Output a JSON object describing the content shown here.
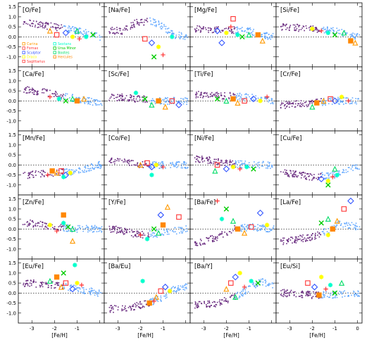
{
  "chart_data": {
    "type": "scatter",
    "layout": "5x4 panel grid",
    "xlabel": "[Fe/H]",
    "x_ticks": [
      "-3",
      "-2",
      "-1",
      "0"
    ],
    "x_ticks_shared": [
      "-3",
      "-2",
      "-1"
    ],
    "xlim": [
      -3.6,
      0.2
    ],
    "y_ticks": [
      "1.5",
      "1.0",
      "0.5",
      "0.0",
      "-0.5",
      "-1.0"
    ],
    "ylim": [
      -1.5,
      1.7
    ],
    "reference_line": "y = 0 (dotted)",
    "legend_panel": 0,
    "legend": [
      {
        "label": "Carina",
        "color": "#ff9900",
        "marker": "triangle"
      },
      {
        "label": "Fornax",
        "color": "#ff3333",
        "marker": "square"
      },
      {
        "label": "Sculptor",
        "color": "#3355ff",
        "marker": "diamond"
      },
      {
        "label": "Draco",
        "color": "#ffff00",
        "marker": "star"
      },
      {
        "label": "Sagittarius",
        "color": "#ff3333",
        "marker": "plus"
      },
      {
        "label": "Sextans",
        "color": "#00ffcc",
        "marker": "star"
      },
      {
        "label": "Ursa Minor",
        "color": "#00cc00",
        "marker": "cross"
      },
      {
        "label": "Bootes",
        "color": "#00dd66",
        "marker": "triangle"
      },
      {
        "label": "Hercules",
        "color": "#ff8800",
        "marker": "filled-square"
      }
    ],
    "panels": [
      {
        "label": "[O/Fe]",
        "mw": [
          [
            -3.2,
            0.7
          ],
          [
            -2.0,
            0.5
          ],
          [
            -1.0,
            0.3
          ],
          [
            0.0,
            0.0
          ]
        ],
        "dsph": [
          [
            -2.2,
            0.3
          ],
          [
            -1.9,
            0.1
          ],
          [
            -1.5,
            0.2
          ],
          [
            -1.2,
            0.0
          ],
          [
            -0.9,
            -0.1
          ],
          [
            -0.6,
            0.0
          ],
          [
            -0.3,
            0.1
          ],
          [
            -1.0,
            0.3
          ]
        ]
      },
      {
        "label": "[Na/Fe]",
        "mw": [
          [
            -2.8,
            0.3
          ],
          [
            -2.2,
            0.7
          ],
          [
            -1.5,
            0.8
          ],
          [
            -1.0,
            0.5
          ],
          [
            -0.5,
            0.1
          ],
          [
            0.0,
            0.0
          ]
        ],
        "dsph": [
          [
            -1.8,
            -0.1
          ],
          [
            -1.5,
            -0.3
          ],
          [
            -1.2,
            -0.5
          ],
          [
            -1.0,
            -0.9
          ],
          [
            -0.6,
            0.0
          ],
          [
            -1.4,
            -1.0
          ]
        ]
      },
      {
        "label": "[Mg/Fe]",
        "mw": [
          [
            -3.2,
            0.4
          ],
          [
            -2.0,
            0.35
          ],
          [
            -1.0,
            0.3
          ],
          [
            0.0,
            0.0
          ]
        ],
        "dsph": [
          [
            -2.4,
            0.3
          ],
          [
            -2.0,
            0.2
          ],
          [
            -1.8,
            0.5
          ],
          [
            -1.5,
            0.1
          ],
          [
            -1.3,
            0.0
          ],
          [
            -1.0,
            0.1
          ],
          [
            -0.6,
            0.1
          ],
          [
            -0.4,
            -0.2
          ],
          [
            -1.7,
            0.9
          ],
          [
            -2.2,
            -0.3
          ]
        ]
      },
      {
        "label": "[Si/Fe]",
        "mw": [
          [
            -3.2,
            0.5
          ],
          [
            -2.0,
            0.4
          ],
          [
            -1.0,
            0.3
          ],
          [
            0.0,
            0.0
          ]
        ],
        "dsph": [
          [
            -2.0,
            0.4
          ],
          [
            -1.6,
            0.3
          ],
          [
            -1.3,
            0.2
          ],
          [
            -1.0,
            0.1
          ],
          [
            -0.6,
            0.2
          ],
          [
            -0.3,
            -0.2
          ],
          [
            -0.1,
            -0.3
          ]
        ]
      },
      {
        "label": "[Ca/Fe]",
        "mw": [
          [
            -3.2,
            0.55
          ],
          [
            -2.0,
            0.35
          ],
          [
            -1.0,
            0.1
          ],
          [
            0.0,
            -0.1
          ]
        ],
        "dsph": [
          [
            -2.2,
            0.2
          ],
          [
            -1.8,
            0.1
          ],
          [
            -1.5,
            0.0
          ],
          [
            -1.2,
            0.1
          ],
          [
            -1.0,
            0.0
          ],
          [
            -0.7,
            0.1
          ]
        ]
      },
      {
        "label": "[Sc/Fe]",
        "mw": [
          [
            -3.2,
            0.2
          ],
          [
            -2.0,
            0.1
          ],
          [
            -1.0,
            0.0
          ],
          [
            0.0,
            0.0
          ]
        ],
        "dsph": [
          [
            -2.2,
            0.4
          ],
          [
            -1.8,
            0.1
          ],
          [
            -1.5,
            -0.2
          ],
          [
            -1.2,
            0.0
          ],
          [
            -0.9,
            -0.3
          ],
          [
            -0.6,
            0.0
          ],
          [
            -0.3,
            -0.2
          ]
        ]
      },
      {
        "label": "[Ti/Fe]",
        "mw": [
          [
            -3.2,
            0.3
          ],
          [
            -2.0,
            0.25
          ],
          [
            -1.0,
            0.2
          ],
          [
            0.0,
            0.0
          ]
        ],
        "dsph": [
          [
            -2.4,
            0.1
          ],
          [
            -2.0,
            0.0
          ],
          [
            -1.7,
            0.1
          ],
          [
            -1.5,
            -0.1
          ],
          [
            -1.2,
            0.0
          ],
          [
            -0.8,
            0.1
          ],
          [
            -0.5,
            0.0
          ],
          [
            -0.2,
            0.2
          ]
        ]
      },
      {
        "label": "[Cr/Fe]",
        "mw": [
          [
            -3.2,
            -0.2
          ],
          [
            -2.0,
            -0.1
          ],
          [
            -1.0,
            0.0
          ],
          [
            0.0,
            0.0
          ]
        ],
        "dsph": [
          [
            -2.0,
            -0.3
          ],
          [
            -1.8,
            -0.1
          ],
          [
            -1.5,
            0.0
          ],
          [
            -1.2,
            0.1
          ],
          [
            -1.0,
            0.0
          ],
          [
            -0.7,
            0.2
          ],
          [
            -0.4,
            0.0
          ]
        ]
      },
      {
        "label": "[Mn/Fe]",
        "mw": [
          [
            -3.2,
            -0.5
          ],
          [
            -2.0,
            -0.4
          ],
          [
            -1.0,
            -0.3
          ],
          [
            0.0,
            0.0
          ]
        ],
        "dsph": [
          [
            -2.1,
            -0.3
          ],
          [
            -1.9,
            -0.4
          ],
          [
            -1.7,
            -0.3
          ],
          [
            -1.5,
            -0.5
          ],
          [
            -1.3,
            -0.4
          ],
          [
            -2.3,
            -0.5
          ],
          [
            -1.6,
            -0.6
          ]
        ]
      },
      {
        "label": "[Co/Fe]",
        "mw": [
          [
            -3.2,
            0.2
          ],
          [
            -2.0,
            0.0
          ],
          [
            -1.0,
            0.0
          ],
          [
            0.0,
            0.0
          ]
        ],
        "dsph": [
          [
            -2.0,
            0.0
          ],
          [
            -1.7,
            0.1
          ],
          [
            -1.5,
            -0.1
          ],
          [
            -1.3,
            0.0
          ],
          [
            -1.0,
            -0.1
          ],
          [
            -1.5,
            -0.5
          ]
        ]
      },
      {
        "label": "[Ni/Fe]",
        "mw": [
          [
            -3.2,
            0.3
          ],
          [
            -2.0,
            0.1
          ],
          [
            -1.0,
            0.0
          ],
          [
            0.0,
            0.0
          ]
        ],
        "dsph": [
          [
            -2.4,
            0.0
          ],
          [
            -2.0,
            -0.2
          ],
          [
            -1.7,
            -0.1
          ],
          [
            -1.4,
            -0.2
          ],
          [
            -1.1,
            -0.1
          ],
          [
            -0.8,
            -0.2
          ],
          [
            -2.5,
            -0.3
          ]
        ]
      },
      {
        "label": "[Cu/Fe]",
        "mw": [
          [
            -3.2,
            -0.4
          ],
          [
            -2.0,
            -0.6
          ],
          [
            -1.0,
            -0.5
          ],
          [
            0.0,
            -0.1
          ]
        ],
        "dsph": [
          [
            -1.6,
            -0.7
          ],
          [
            -1.3,
            -0.8
          ],
          [
            -1.1,
            -0.6
          ],
          [
            -0.9,
            -0.5
          ],
          [
            -1.3,
            -1.0
          ],
          [
            -1.0,
            -0.2
          ]
        ]
      },
      {
        "label": "[Zn/Fe]",
        "mw": [
          [
            -3.2,
            0.3
          ],
          [
            -2.0,
            0.1
          ],
          [
            -1.0,
            0.0
          ],
          [
            0.0,
            0.0
          ]
        ],
        "dsph": [
          [
            -2.2,
            0.2
          ],
          [
            -1.9,
            -0.1
          ],
          [
            -1.6,
            0.3
          ],
          [
            -1.4,
            0.1
          ],
          [
            -1.2,
            0.0
          ],
          [
            -1.6,
            0.7
          ],
          [
            -1.2,
            -0.6
          ]
        ]
      },
      {
        "label": "[Y/Fe]",
        "mw": [
          [
            -3.2,
            0.0
          ],
          [
            -2.0,
            -0.3
          ],
          [
            -1.0,
            -0.2
          ],
          [
            0.0,
            0.0
          ]
        ],
        "dsph": [
          [
            -2.0,
            -0.3
          ],
          [
            -1.7,
            -0.5
          ],
          [
            -1.4,
            0.0
          ],
          [
            -1.2,
            -0.2
          ],
          [
            -1.0,
            0.2
          ],
          [
            -0.8,
            1.1
          ],
          [
            -0.3,
            0.6
          ],
          [
            -1.1,
            0.7
          ]
        ]
      },
      {
        "label": "[Ba/Fe]",
        "mw": [
          [
            -3.2,
            -0.7
          ],
          [
            -2.4,
            -0.4
          ],
          [
            -1.6,
            0.0
          ],
          [
            -1.0,
            0.1
          ],
          [
            0.0,
            0.0
          ]
        ],
        "dsph": [
          [
            -2.2,
            0.5
          ],
          [
            -2.0,
            1.0
          ],
          [
            -1.7,
            0.4
          ],
          [
            -1.5,
            0.0
          ],
          [
            -1.2,
            -0.2
          ],
          [
            -0.9,
            0.1
          ],
          [
            -0.5,
            0.8
          ],
          [
            -0.2,
            0.2
          ],
          [
            -2.4,
            1.4
          ]
        ]
      },
      {
        "label": "[La/Fe]",
        "mw": [
          [
            -3.2,
            -0.6
          ],
          [
            -2.0,
            -0.4
          ],
          [
            -1.2,
            0.0
          ],
          [
            -0.8,
            0.3
          ],
          [
            0.0,
            0.1
          ]
        ],
        "dsph": [
          [
            -1.6,
            0.3
          ],
          [
            -1.3,
            0.5
          ],
          [
            -1.1,
            0.0
          ],
          [
            -0.9,
            0.4
          ],
          [
            -0.6,
            1.0
          ],
          [
            -0.3,
            1.4
          ],
          [
            -1.3,
            -0.3
          ]
        ]
      },
      {
        "label": "[Eu/Fe]",
        "mw": [
          [
            -3.2,
            0.5
          ],
          [
            -2.0,
            0.4
          ],
          [
            -1.0,
            0.2
          ],
          [
            0.0,
            0.0
          ]
        ],
        "dsph": [
          [
            -2.2,
            0.6
          ],
          [
            -1.9,
            0.8
          ],
          [
            -1.7,
            0.3
          ],
          [
            -1.5,
            0.5
          ],
          [
            -1.2,
            0.2
          ],
          [
            -1.0,
            0.5
          ],
          [
            -0.8,
            0.4
          ],
          [
            -1.1,
            1.4
          ],
          [
            -1.6,
            1.0
          ]
        ]
      },
      {
        "label": "[Ba/Eu]",
        "mw": [
          [
            -3.2,
            -0.8
          ],
          [
            -2.4,
            -0.7
          ],
          [
            -1.6,
            -0.5
          ],
          [
            -1.0,
            -0.2
          ],
          [
            -0.5,
            0.2
          ],
          [
            0.0,
            0.3
          ]
        ],
        "dsph": [
          [
            -1.6,
            -0.5
          ],
          [
            -1.3,
            -0.2
          ],
          [
            -1.1,
            0.1
          ],
          [
            -0.9,
            0.3
          ],
          [
            -0.7,
            0.1
          ],
          [
            -1.4,
            -0.4
          ],
          [
            -1.9,
            0.6
          ]
        ]
      },
      {
        "label": "[Ba/Y]",
        "mw": [
          [
            -3.2,
            -0.6
          ],
          [
            -2.4,
            -0.5
          ],
          [
            -1.6,
            -0.2
          ],
          [
            -1.0,
            0.2
          ],
          [
            -0.5,
            0.6
          ],
          [
            0.0,
            0.4
          ]
        ],
        "dsph": [
          [
            -2.0,
            0.2
          ],
          [
            -1.8,
            0.5
          ],
          [
            -1.6,
            0.8
          ],
          [
            -1.4,
            1.0
          ],
          [
            -1.2,
            0.3
          ],
          [
            -0.9,
            0.6
          ],
          [
            -0.6,
            0.5
          ],
          [
            -1.6,
            -0.2
          ]
        ]
      },
      {
        "label": "[Eu/Si]",
        "mw": [
          [
            -3.2,
            0.0
          ],
          [
            -2.0,
            -0.1
          ],
          [
            -1.0,
            -0.1
          ],
          [
            0.0,
            0.0
          ]
        ],
        "dsph": [
          [
            -2.2,
            0.5
          ],
          [
            -1.9,
            0.3
          ],
          [
            -1.6,
            0.8
          ],
          [
            -1.4,
            0.2
          ],
          [
            -1.2,
            0.4
          ],
          [
            -1.0,
            0.0
          ],
          [
            -0.7,
            0.5
          ],
          [
            -1.7,
            -0.1
          ]
        ]
      }
    ]
  }
}
